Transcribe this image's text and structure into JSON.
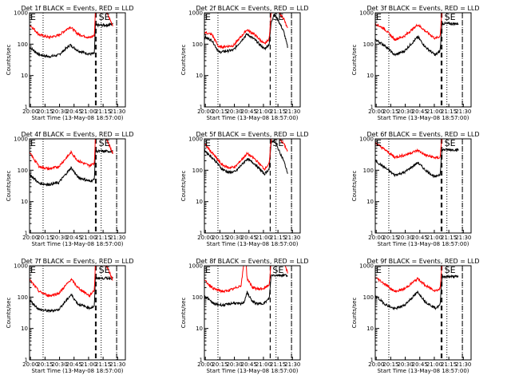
{
  "chart_data": {
    "type": "line",
    "layout": "3x3 grid",
    "y_scale": "log",
    "ylim": [
      1,
      1000
    ],
    "y_ticks": [
      "1",
      "10",
      "100",
      "1000"
    ],
    "ylabel": "Counts/sec",
    "xlabel": "Start Time (13-May-08 18:57:00)",
    "x_ticks": [
      "20:00",
      "20:15",
      "20:30",
      "20:45",
      "21:00",
      "21:15",
      "21:30"
    ],
    "xlim": [
      "19:59",
      "21:38"
    ],
    "series_colors": {
      "events": "#000000",
      "lld": "#ff0000"
    },
    "annotation": "SE",
    "dotted_markers": [
      "20:13",
      "21:13",
      "21:29"
    ],
    "dashed_markers": [
      "21:07",
      "21:29"
    ],
    "panels": [
      {
        "title": "Det 1f BLACK = Events, RED = LLD",
        "flare_start": "21:08",
        "black": [
          [
            0,
            80
          ],
          [
            10,
            46
          ],
          [
            20,
            40
          ],
          [
            30,
            45
          ],
          [
            42,
            95
          ],
          [
            50,
            62
          ],
          [
            62,
            48
          ],
          [
            67,
            50
          ],
          [
            68,
            400
          ],
          [
            79,
            400
          ],
          [
            86,
            440
          ]
        ],
        "red": [
          [
            0,
            420
          ],
          [
            10,
            200
          ],
          [
            20,
            165
          ],
          [
            30,
            190
          ],
          [
            42,
            360
          ],
          [
            50,
            210
          ],
          [
            62,
            160
          ],
          [
            67,
            190
          ],
          [
            68,
            1100
          ],
          [
            79,
            1100
          ],
          [
            86,
            400
          ]
        ]
      },
      {
        "title": "Det 2f BLACK = Events, RED = LLD",
        "flare_start": "21:07",
        "black": [
          [
            0,
            170
          ],
          [
            8,
            130
          ],
          [
            15,
            55
          ],
          [
            30,
            65
          ],
          [
            44,
            210
          ],
          [
            52,
            140
          ],
          [
            62,
            70
          ],
          [
            67,
            100
          ],
          [
            69,
            500
          ],
          [
            72,
            900
          ],
          [
            76,
            600
          ],
          [
            82,
            250
          ],
          [
            86,
            80
          ]
        ],
        "red": [
          [
            0,
            240
          ],
          [
            8,
            200
          ],
          [
            15,
            80
          ],
          [
            30,
            90
          ],
          [
            44,
            290
          ],
          [
            52,
            200
          ],
          [
            62,
            100
          ],
          [
            67,
            150
          ],
          [
            69,
            1000
          ],
          [
            72,
            1300
          ],
          [
            76,
            1100
          ],
          [
            82,
            650
          ],
          [
            86,
            300
          ]
        ]
      },
      {
        "title": "Det 3f BLACK = Events, RED = LLD",
        "flare_start": "21:08",
        "black": [
          [
            0,
            140
          ],
          [
            10,
            90
          ],
          [
            20,
            45
          ],
          [
            30,
            60
          ],
          [
            44,
            170
          ],
          [
            52,
            80
          ],
          [
            62,
            45
          ],
          [
            67,
            60
          ],
          [
            69,
            450
          ],
          [
            82,
            450
          ],
          [
            86,
            450
          ]
        ],
        "red": [
          [
            0,
            450
          ],
          [
            10,
            300
          ],
          [
            20,
            140
          ],
          [
            30,
            180
          ],
          [
            44,
            420
          ],
          [
            52,
            260
          ],
          [
            62,
            150
          ],
          [
            67,
            180
          ],
          [
            69,
            1300
          ],
          [
            82,
            1300
          ],
          [
            86,
            1300
          ]
        ]
      },
      {
        "title": "Det 4f BLACK = Events, RED = LLD",
        "flare_start": "21:08",
        "black": [
          [
            0,
            75
          ],
          [
            10,
            38
          ],
          [
            20,
            35
          ],
          [
            30,
            40
          ],
          [
            43,
            120
          ],
          [
            50,
            60
          ],
          [
            62,
            45
          ],
          [
            67,
            50
          ],
          [
            68,
            400
          ],
          [
            79,
            400
          ],
          [
            86,
            400
          ]
        ],
        "red": [
          [
            0,
            360
          ],
          [
            10,
            130
          ],
          [
            20,
            110
          ],
          [
            30,
            130
          ],
          [
            43,
            370
          ],
          [
            50,
            200
          ],
          [
            62,
            140
          ],
          [
            67,
            170
          ],
          [
            68,
            1100
          ],
          [
            79,
            1100
          ],
          [
            86,
            350
          ]
        ]
      },
      {
        "title": "Det 5f BLACK = Events, RED = LLD",
        "flare_start": "21:07",
        "black": [
          [
            0,
            430
          ],
          [
            10,
            220
          ],
          [
            18,
            110
          ],
          [
            25,
            85
          ],
          [
            32,
            90
          ],
          [
            44,
            230
          ],
          [
            52,
            160
          ],
          [
            62,
            75
          ],
          [
            67,
            110
          ],
          [
            69,
            800
          ],
          [
            72,
            900
          ],
          [
            76,
            500
          ],
          [
            82,
            200
          ],
          [
            86,
            80
          ]
        ],
        "red": [
          [
            0,
            700
          ],
          [
            10,
            300
          ],
          [
            18,
            150
          ],
          [
            25,
            120
          ],
          [
            32,
            130
          ],
          [
            44,
            340
          ],
          [
            52,
            230
          ],
          [
            62,
            110
          ],
          [
            67,
            160
          ],
          [
            69,
            1000
          ],
          [
            72,
            1300
          ],
          [
            76,
            1100
          ],
          [
            82,
            700
          ],
          [
            86,
            400
          ]
        ]
      },
      {
        "title": "Det 6f BLACK = Events, RED = LLD",
        "flare_start": "21:08",
        "black": [
          [
            0,
            200
          ],
          [
            10,
            120
          ],
          [
            20,
            70
          ],
          [
            30,
            85
          ],
          [
            44,
            175
          ],
          [
            52,
            100
          ],
          [
            62,
            60
          ],
          [
            67,
            75
          ],
          [
            69,
            450
          ],
          [
            82,
            450
          ],
          [
            86,
            450
          ]
        ],
        "red": [
          [
            0,
            750
          ],
          [
            10,
            450
          ],
          [
            20,
            260
          ],
          [
            30,
            300
          ],
          [
            44,
            430
          ],
          [
            52,
            300
          ],
          [
            62,
            250
          ],
          [
            67,
            250
          ],
          [
            69,
            1300
          ],
          [
            82,
            1300
          ],
          [
            86,
            1300
          ]
        ]
      },
      {
        "title": "Det 7f BLACK = Events, RED = LLD",
        "flare_start": "21:08",
        "black": [
          [
            0,
            80
          ],
          [
            10,
            40
          ],
          [
            20,
            36
          ],
          [
            30,
            40
          ],
          [
            43,
            120
          ],
          [
            50,
            60
          ],
          [
            62,
            45
          ],
          [
            67,
            50
          ],
          [
            68,
            400
          ],
          [
            79,
            400
          ],
          [
            86,
            400
          ]
        ],
        "red": [
          [
            0,
            360
          ],
          [
            10,
            150
          ],
          [
            20,
            110
          ],
          [
            30,
            130
          ],
          [
            43,
            370
          ],
          [
            50,
            200
          ],
          [
            62,
            110
          ],
          [
            67,
            170
          ],
          [
            68,
            1100
          ],
          [
            79,
            1100
          ],
          [
            86,
            350
          ]
        ]
      },
      {
        "title": "Det 8f BLACK = Events, RED = LLD",
        "flare_start": "21:07",
        "black": [
          [
            0,
            110
          ],
          [
            10,
            60
          ],
          [
            20,
            55
          ],
          [
            30,
            65
          ],
          [
            38,
            60
          ],
          [
            41,
            70
          ],
          [
            44,
            140
          ],
          [
            50,
            70
          ],
          [
            56,
            60
          ],
          [
            62,
            65
          ],
          [
            67,
            90
          ],
          [
            69,
            500
          ],
          [
            82,
            500
          ],
          [
            86,
            500
          ]
        ],
        "red": [
          [
            0,
            340
          ],
          [
            10,
            180
          ],
          [
            20,
            150
          ],
          [
            30,
            180
          ],
          [
            38,
            240
          ],
          [
            41,
            1400
          ],
          [
            43,
            1400
          ],
          [
            44,
            400
          ],
          [
            50,
            200
          ],
          [
            56,
            180
          ],
          [
            62,
            190
          ],
          [
            67,
            250
          ],
          [
            69,
            1300
          ],
          [
            82,
            1300
          ],
          [
            86,
            600
          ]
        ]
      },
      {
        "title": "Det 9f BLACK = Events, RED = LLD",
        "flare_start": "21:08",
        "black": [
          [
            0,
            110
          ],
          [
            10,
            60
          ],
          [
            20,
            42
          ],
          [
            30,
            55
          ],
          [
            44,
            145
          ],
          [
            52,
            70
          ],
          [
            62,
            45
          ],
          [
            67,
            55
          ],
          [
            69,
            450
          ],
          [
            82,
            450
          ],
          [
            86,
            450
          ]
        ],
        "red": [
          [
            0,
            430
          ],
          [
            10,
            260
          ],
          [
            20,
            150
          ],
          [
            30,
            180
          ],
          [
            44,
            390
          ],
          [
            52,
            230
          ],
          [
            62,
            160
          ],
          [
            67,
            180
          ],
          [
            69,
            1300
          ],
          [
            82,
            1300
          ],
          [
            86,
            1300
          ]
        ]
      }
    ]
  }
}
